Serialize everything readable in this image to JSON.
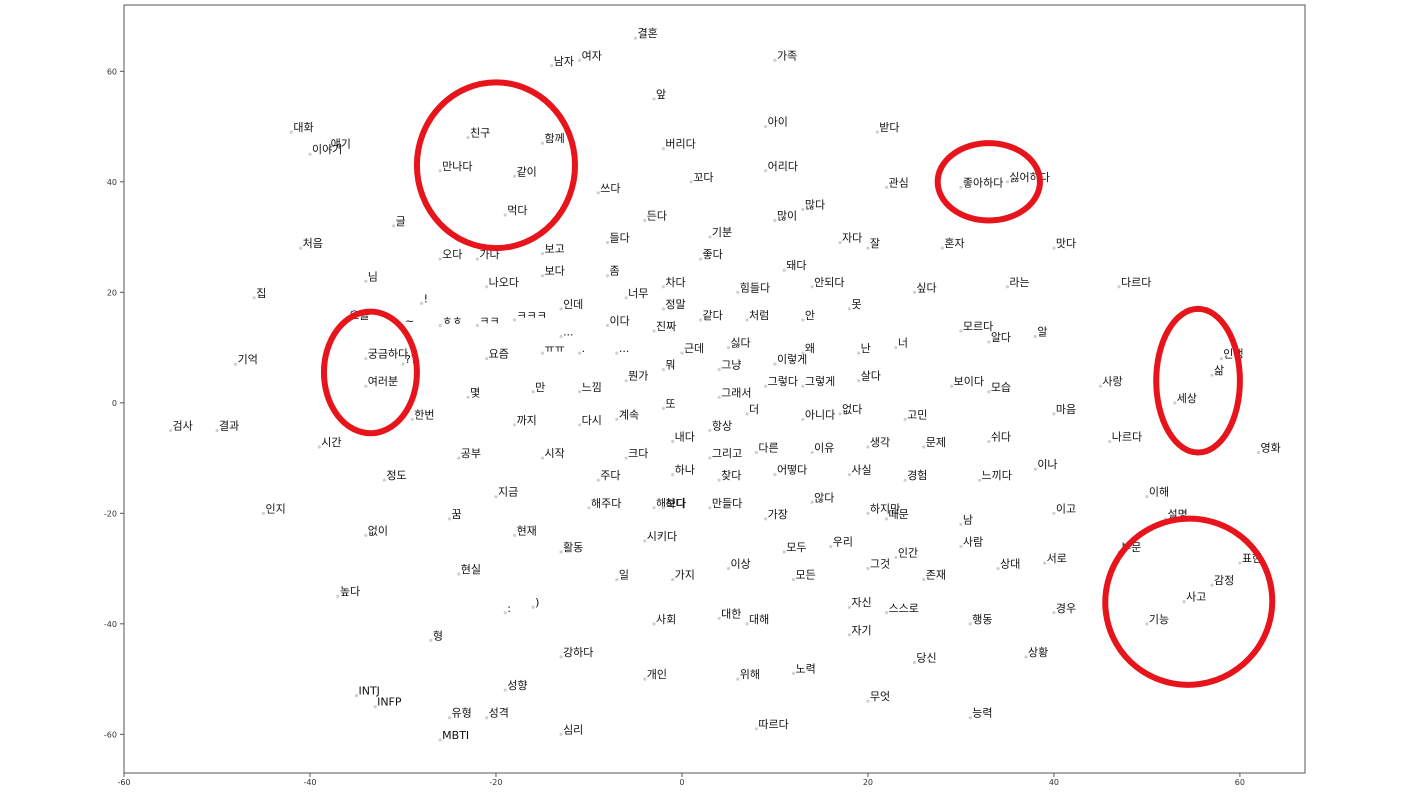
{
  "chart_data": {
    "type": "scatter",
    "title": "",
    "xlabel": "",
    "ylabel": "",
    "xlim": [
      -60,
      67
    ],
    "ylim": [
      -67,
      72
    ],
    "xticks": [
      -60,
      -40,
      -20,
      0,
      20,
      40,
      60
    ],
    "yticks": [
      60,
      40,
      20,
      0,
      -20,
      -40,
      -60
    ],
    "grid": false,
    "highlight_color": "#e8141b",
    "highlight_groups": [
      {
        "name": "friends",
        "cx": -20,
        "cy": 43,
        "rx": 8.5,
        "ry": 15
      },
      {
        "name": "like-dislike",
        "cx": 33,
        "cy": 40,
        "rx": 5.5,
        "ry": 7
      },
      {
        "name": "curious",
        "cx": -33.5,
        "cy": 5.5,
        "rx": 5,
        "ry": 11
      },
      {
        "name": "life-world",
        "cx": 55.5,
        "cy": 4,
        "rx": 4.5,
        "ry": 13
      },
      {
        "name": "emotion-thinking",
        "cx": 54.5,
        "cy": -36,
        "rx": 9,
        "ry": 15,
        "rotate": -30
      }
    ],
    "points": [
      {
        "label": "결혼",
        "x": -5,
        "y": 66
      },
      {
        "label": "남자",
        "x": -14,
        "y": 61
      },
      {
        "label": "여자",
        "x": -11,
        "y": 62
      },
      {
        "label": "가족",
        "x": 10,
        "y": 62
      },
      {
        "label": "앞",
        "x": -3,
        "y": 55
      },
      {
        "label": "대화",
        "x": -42,
        "y": 49
      },
      {
        "label": "친구",
        "x": -23,
        "y": 48
      },
      {
        "label": "함께",
        "x": -15,
        "y": 47
      },
      {
        "label": "얘기",
        "x": -38,
        "y": 46
      },
      {
        "label": "이야기",
        "x": -40,
        "y": 45
      },
      {
        "label": "버리다",
        "x": -2,
        "y": 46
      },
      {
        "label": "아이",
        "x": 9,
        "y": 50
      },
      {
        "label": "받다",
        "x": 21,
        "y": 49
      },
      {
        "label": "만나다",
        "x": -26,
        "y": 42
      },
      {
        "label": "같이",
        "x": -18,
        "y": 41
      },
      {
        "label": "꼬다",
        "x": 1,
        "y": 40
      },
      {
        "label": "어리다",
        "x": 9,
        "y": 42
      },
      {
        "label": "관심",
        "x": 22,
        "y": 39
      },
      {
        "label": "좋아하다",
        "x": 30,
        "y": 39
      },
      {
        "label": "싫어하다",
        "x": 35,
        "y": 40
      },
      {
        "label": "쓰다",
        "x": -9,
        "y": 38
      },
      {
        "label": "먹다",
        "x": -19,
        "y": 34
      },
      {
        "label": "든다",
        "x": -4,
        "y": 33
      },
      {
        "label": "많이",
        "x": 10,
        "y": 33
      },
      {
        "label": "많다",
        "x": 13,
        "y": 35
      },
      {
        "label": "글",
        "x": -31,
        "y": 32
      },
      {
        "label": "기분",
        "x": 3,
        "y": 30
      },
      {
        "label": "들다",
        "x": -8,
        "y": 29
      },
      {
        "label": "자다",
        "x": 17,
        "y": 29
      },
      {
        "label": "잘",
        "x": 20,
        "y": 28
      },
      {
        "label": "혼자",
        "x": 28,
        "y": 28
      },
      {
        "label": "맛다",
        "x": 40,
        "y": 28
      },
      {
        "label": "처음",
        "x": -41,
        "y": 28
      },
      {
        "label": "오다",
        "x": -26,
        "y": 26
      },
      {
        "label": "가다",
        "x": -22,
        "y": 26
      },
      {
        "label": "보고",
        "x": -15,
        "y": 27
      },
      {
        "label": "좋다",
        "x": 2,
        "y": 26
      },
      {
        "label": "돼다",
        "x": 11,
        "y": 24
      },
      {
        "label": "보다",
        "x": -15,
        "y": 23
      },
      {
        "label": "좀",
        "x": -8,
        "y": 23
      },
      {
        "label": "차다",
        "x": -2,
        "y": 21
      },
      {
        "label": "님",
        "x": -34,
        "y": 22
      },
      {
        "label": "나오다",
        "x": -21,
        "y": 21
      },
      {
        "label": "힘들다",
        "x": 6,
        "y": 20
      },
      {
        "label": "안되다",
        "x": 14,
        "y": 21
      },
      {
        "label": "싶다",
        "x": 25,
        "y": 20
      },
      {
        "label": "라는",
        "x": 35,
        "y": 21
      },
      {
        "label": "다르다",
        "x": 47,
        "y": 21
      },
      {
        "label": "집",
        "x": -46,
        "y": 19
      },
      {
        "label": "너무",
        "x": -6,
        "y": 19
      },
      {
        "label": "!",
        "x": -28,
        "y": 18
      },
      {
        "label": "인데",
        "x": -13,
        "y": 17
      },
      {
        "label": "정말",
        "x": -2,
        "y": 17
      },
      {
        "label": "못",
        "x": 18,
        "y": 17
      },
      {
        "label": "오늘",
        "x": -36,
        "y": 15
      },
      {
        "label": "~",
        "x": -30,
        "y": 14
      },
      {
        "label": "ㅎㅎ",
        "x": -26,
        "y": 14
      },
      {
        "label": "ㅋㅋ",
        "x": -22,
        "y": 14
      },
      {
        "label": "ㅋㅋㅋ",
        "x": -18,
        "y": 15
      },
      {
        "label": "같다",
        "x": 2,
        "y": 15
      },
      {
        "label": "처럼",
        "x": 7,
        "y": 15
      },
      {
        "label": "안",
        "x": 13,
        "y": 15
      },
      {
        "label": "이다",
        "x": -8,
        "y": 14
      },
      {
        "label": "진짜",
        "x": -3,
        "y": 13
      },
      {
        "label": "모르다",
        "x": 30,
        "y": 13
      },
      {
        "label": "알다",
        "x": 33,
        "y": 11
      },
      {
        "label": "알",
        "x": 38,
        "y": 12
      },
      {
        "label": "...",
        "x": -13,
        "y": 12
      },
      {
        "label": "ㅠㅠ",
        "x": -15,
        "y": 9
      },
      {
        "label": "근데",
        "x": 0,
        "y": 9
      },
      {
        "label": "싫다",
        "x": 5,
        "y": 10
      },
      {
        "label": "왜",
        "x": 13,
        "y": 9
      },
      {
        "label": "난",
        "x": 19,
        "y": 9
      },
      {
        "label": "너",
        "x": 23,
        "y": 10
      },
      {
        "label": "궁금하다",
        "x": -34,
        "y": 8
      },
      {
        "label": "??",
        "x": -30,
        "y": 7
      },
      {
        "label": "요즘",
        "x": -21,
        "y": 8
      },
      {
        "label": ".",
        "x": -11,
        "y": 9
      },
      {
        "label": "...",
        "x": -7,
        "y": 9
      },
      {
        "label": "기억",
        "x": -48,
        "y": 7
      },
      {
        "label": "뭐",
        "x": -2,
        "y": 6
      },
      {
        "label": "그냥",
        "x": 4,
        "y": 6
      },
      {
        "label": "이렇게",
        "x": 10,
        "y": 7
      },
      {
        "label": "인생",
        "x": 58,
        "y": 8
      },
      {
        "label": "삶",
        "x": 57,
        "y": 5
      },
      {
        "label": "여러분",
        "x": -34,
        "y": 3
      },
      {
        "label": "뭔가",
        "x": -6,
        "y": 4
      },
      {
        "label": "살다",
        "x": 19,
        "y": 4
      },
      {
        "label": "보이다",
        "x": 29,
        "y": 3
      },
      {
        "label": "사랑",
        "x": 45,
        "y": 3
      },
      {
        "label": "만",
        "x": -16,
        "y": 2
      },
      {
        "label": "느낌",
        "x": -11,
        "y": 2
      },
      {
        "label": "그렇다",
        "x": 9,
        "y": 3
      },
      {
        "label": "그렇게",
        "x": 13,
        "y": 3
      },
      {
        "label": "모습",
        "x": 33,
        "y": 2
      },
      {
        "label": "몇",
        "x": -23,
        "y": 1
      },
      {
        "label": "그래서",
        "x": 4,
        "y": 1
      },
      {
        "label": "세상",
        "x": 53,
        "y": 0
      },
      {
        "label": "또",
        "x": -2,
        "y": -1
      },
      {
        "label": "더",
        "x": 7,
        "y": -2
      },
      {
        "label": "없다",
        "x": 17,
        "y": -2
      },
      {
        "label": "마음",
        "x": 40,
        "y": -2
      },
      {
        "label": "한번",
        "x": -29,
        "y": -3
      },
      {
        "label": "계속",
        "x": -7,
        "y": -3
      },
      {
        "label": "아니다",
        "x": 13,
        "y": -3
      },
      {
        "label": "고민",
        "x": 24,
        "y": -3
      },
      {
        "label": "까지",
        "x": -18,
        "y": -4
      },
      {
        "label": "다시",
        "x": -11,
        "y": -4
      },
      {
        "label": "항상",
        "x": 3,
        "y": -5
      },
      {
        "label": "검사",
        "x": -55,
        "y": -5
      },
      {
        "label": "결과",
        "x": -50,
        "y": -5
      },
      {
        "label": "내다",
        "x": -1,
        "y": -7
      },
      {
        "label": "쉬다",
        "x": 33,
        "y": -7
      },
      {
        "label": "나르다",
        "x": 46,
        "y": -7
      },
      {
        "label": "생각",
        "x": 20,
        "y": -8
      },
      {
        "label": "문제",
        "x": 26,
        "y": -8
      },
      {
        "label": "시간",
        "x": -39,
        "y": -8
      },
      {
        "label": "다른",
        "x": 8,
        "y": -9
      },
      {
        "label": "이유",
        "x": 14,
        "y": -9
      },
      {
        "label": "영화",
        "x": 62,
        "y": -9
      },
      {
        "label": "공부",
        "x": -24,
        "y": -10
      },
      {
        "label": "시작",
        "x": -15,
        "y": -10
      },
      {
        "label": "크다",
        "x": -6,
        "y": -10
      },
      {
        "label": "그리고",
        "x": 3,
        "y": -10
      },
      {
        "label": "하나",
        "x": -1,
        "y": -13
      },
      {
        "label": "어떻다",
        "x": 10,
        "y": -13
      },
      {
        "label": "사실",
        "x": 18,
        "y": -13
      },
      {
        "label": "이나",
        "x": 38,
        "y": -12
      },
      {
        "label": "정도",
        "x": -32,
        "y": -14
      },
      {
        "label": "주다",
        "x": -9,
        "y": -14
      },
      {
        "label": "찾다",
        "x": 4,
        "y": -14
      },
      {
        "label": "경험",
        "x": 24,
        "y": -14
      },
      {
        "label": "느끼다",
        "x": 32,
        "y": -14
      },
      {
        "label": "지금",
        "x": -20,
        "y": -17
      },
      {
        "label": "않다",
        "x": 14,
        "y": -18
      },
      {
        "label": "이해",
        "x": 50,
        "y": -17
      },
      {
        "label": "해주다",
        "x": -10,
        "y": -19
      },
      {
        "label": "해보다",
        "x": -3,
        "y": -19
      },
      {
        "label": "하다",
        "x": -2,
        "y": -19
      },
      {
        "label": "만들다",
        "x": 3,
        "y": -19
      },
      {
        "label": "하지만",
        "x": 20,
        "y": -20
      },
      {
        "label": "이고",
        "x": 40,
        "y": -20
      },
      {
        "label": "인지",
        "x": -45,
        "y": -20
      },
      {
        "label": "꿈",
        "x": -25,
        "y": -21
      },
      {
        "label": "때문",
        "x": 22,
        "y": -21
      },
      {
        "label": "가장",
        "x": 9,
        "y": -21
      },
      {
        "label": "설명",
        "x": 52,
        "y": -21
      },
      {
        "label": "남",
        "x": 30,
        "y": -22
      },
      {
        "label": "현재",
        "x": -18,
        "y": -24
      },
      {
        "label": "없이",
        "x": -34,
        "y": -24
      },
      {
        "label": "시키다",
        "x": -4,
        "y": -25
      },
      {
        "label": "사람",
        "x": 30,
        "y": -26
      },
      {
        "label": "우리",
        "x": 16,
        "y": -26
      },
      {
        "label": "활동",
        "x": -13,
        "y": -27
      },
      {
        "label": "모두",
        "x": 11,
        "y": -27
      },
      {
        "label": "인간",
        "x": 23,
        "y": -28
      },
      {
        "label": "부문",
        "x": 47,
        "y": -27
      },
      {
        "label": "서로",
        "x": 39,
        "y": -29
      },
      {
        "label": "표현",
        "x": 60,
        "y": -29
      },
      {
        "label": "이상",
        "x": 5,
        "y": -30
      },
      {
        "label": "그것",
        "x": 20,
        "y": -30
      },
      {
        "label": "상대",
        "x": 34,
        "y": -30
      },
      {
        "label": "현실",
        "x": -24,
        "y": -31
      },
      {
        "label": "일",
        "x": -7,
        "y": -32
      },
      {
        "label": "가지",
        "x": -1,
        "y": -32
      },
      {
        "label": "모든",
        "x": 12,
        "y": -32
      },
      {
        "label": "존재",
        "x": 26,
        "y": -32
      },
      {
        "label": "감정",
        "x": 57,
        "y": -33
      },
      {
        "label": "높다",
        "x": -37,
        "y": -35
      },
      {
        "label": "사고",
        "x": 54,
        "y": -36
      },
      {
        "label": ")",
        "x": -16,
        "y": -37
      },
      {
        "label": ":",
        "x": -19,
        "y": -38
      },
      {
        "label": "자신",
        "x": 18,
        "y": -37
      },
      {
        "label": "스스로",
        "x": 22,
        "y": -38
      },
      {
        "label": "경우",
        "x": 40,
        "y": -38
      },
      {
        "label": "대한",
        "x": 4,
        "y": -39
      },
      {
        "label": "사회",
        "x": -3,
        "y": -40
      },
      {
        "label": "대해",
        "x": 7,
        "y": -40
      },
      {
        "label": "행동",
        "x": 31,
        "y": -40
      },
      {
        "label": "기능",
        "x": 50,
        "y": -40
      },
      {
        "label": "자기",
        "x": 18,
        "y": -42
      },
      {
        "label": "형",
        "x": -27,
        "y": -43
      },
      {
        "label": "강하다",
        "x": -13,
        "y": -46
      },
      {
        "label": "상황",
        "x": 37,
        "y": -46
      },
      {
        "label": "당신",
        "x": 25,
        "y": -47
      },
      {
        "label": "노력",
        "x": 12,
        "y": -49
      },
      {
        "label": "개인",
        "x": -4,
        "y": -50
      },
      {
        "label": "위해",
        "x": 6,
        "y": -50
      },
      {
        "label": "성향",
        "x": -19,
        "y": -52
      },
      {
        "label": "INTJ",
        "x": -35,
        "y": -53
      },
      {
        "label": "무엇",
        "x": 20,
        "y": -54
      },
      {
        "label": "INFP",
        "x": -33,
        "y": -55
      },
      {
        "label": "유형",
        "x": -25,
        "y": -57
      },
      {
        "label": "성격",
        "x": -21,
        "y": -57
      },
      {
        "label": "능력",
        "x": 31,
        "y": -57
      },
      {
        "label": "따르다",
        "x": 8,
        "y": -59
      },
      {
        "label": "심리",
        "x": -13,
        "y": -60
      },
      {
        "label": "MBTI",
        "x": -26,
        "y": -61
      }
    ]
  }
}
